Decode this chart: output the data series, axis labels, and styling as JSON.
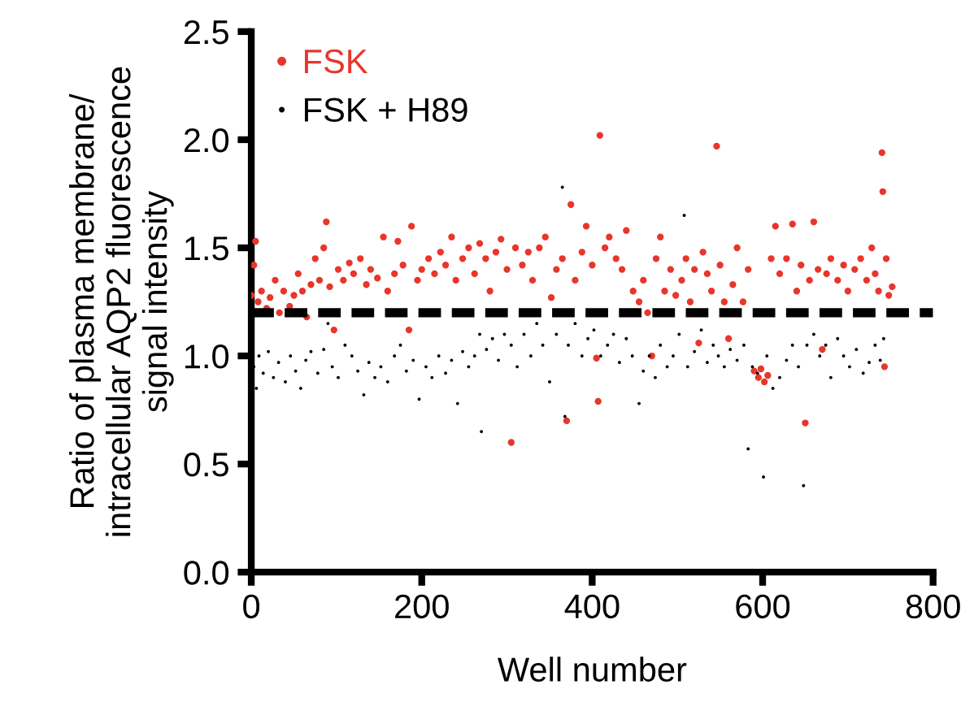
{
  "chart_data": {
    "type": "scatter",
    "xlabel": "Well number",
    "ylabel": "Ratio of plasma membrane/\nintracellular AQP2 fluorescence\nsignal intensity",
    "xlim": [
      0,
      800
    ],
    "xticks": [
      0,
      200,
      400,
      600,
      800
    ],
    "ylim": [
      0,
      2.5
    ],
    "yticks": [
      {
        "value": 0,
        "label": "0.0"
      },
      0.5,
      {
        "value": 1,
        "label": "1.0"
      },
      1.5,
      {
        "value": 2,
        "label": "2.0"
      },
      2.5
    ],
    "legend": "top left",
    "grid": false,
    "marker": "circle",
    "ref_lines": [
      {
        "axis": "y",
        "value": 1.2,
        "label": null,
        "color": "#000000",
        "line_style": "dashed"
      }
    ],
    "series": [
      {
        "name": "FSK",
        "color": "#e8362a",
        "x": [
          0,
          3,
          5,
          8,
          12,
          18,
          22,
          28,
          33,
          38,
          45,
          50,
          55,
          60,
          65,
          70,
          75,
          80,
          85,
          88,
          92,
          97,
          102,
          108,
          115,
          120,
          128,
          135,
          140,
          148,
          155,
          160,
          168,
          172,
          178,
          185,
          188,
          195,
          200,
          208,
          215,
          222,
          228,
          235,
          240,
          248,
          255,
          262,
          268,
          275,
          280,
          287,
          293,
          300,
          305,
          310,
          318,
          325,
          330,
          338,
          345,
          352,
          358,
          365,
          370,
          375,
          380,
          388,
          393,
          400,
          405,
          407,
          409,
          415,
          420,
          428,
          435,
          440,
          448,
          455,
          460,
          465,
          470,
          475,
          480,
          485,
          492,
          498,
          505,
          510,
          515,
          520,
          525,
          530,
          535,
          540,
          546,
          550,
          555,
          560,
          565,
          570,
          577,
          583,
          590,
          595,
          598,
          602,
          606,
          610,
          615,
          620,
          628,
          635,
          640,
          645,
          650,
          655,
          660,
          665,
          670,
          675,
          680,
          688,
          695,
          700,
          708,
          715,
          722,
          728,
          732,
          736,
          740,
          741,
          743,
          745,
          748,
          752
        ],
        "values": [
          1.28,
          1.42,
          1.53,
          1.25,
          1.3,
          1.22,
          1.27,
          1.35,
          1.2,
          1.3,
          1.23,
          1.28,
          1.38,
          1.3,
          1.18,
          1.33,
          1.45,
          1.35,
          1.5,
          1.62,
          1.32,
          1.12,
          1.4,
          1.35,
          1.43,
          1.38,
          1.45,
          1.33,
          1.4,
          1.36,
          1.55,
          1.3,
          1.38,
          1.53,
          1.42,
          1.12,
          1.6,
          1.35,
          1.4,
          1.45,
          1.38,
          1.48,
          1.42,
          1.55,
          1.35,
          1.45,
          1.5,
          1.38,
          1.52,
          1.45,
          1.3,
          1.48,
          1.54,
          1.4,
          0.6,
          1.5,
          1.42,
          1.48,
          1.35,
          1.5,
          1.55,
          1.27,
          1.4,
          1.45,
          0.7,
          1.7,
          1.35,
          1.48,
          1.6,
          1.42,
          0.99,
          0.79,
          2.02,
          1.5,
          1.55,
          1.45,
          1.4,
          1.58,
          1.3,
          1.25,
          1.35,
          1.2,
          1.0,
          1.45,
          1.55,
          1.3,
          1.4,
          1.28,
          1.35,
          1.45,
          1.25,
          1.4,
          1.06,
          1.48,
          1.38,
          1.3,
          1.97,
          1.42,
          1.25,
          1.08,
          1.33,
          1.5,
          1.25,
          1.4,
          0.93,
          0.9,
          0.94,
          0.88,
          0.91,
          1.45,
          1.6,
          1.38,
          1.45,
          1.61,
          1.3,
          1.42,
          0.69,
          1.35,
          1.62,
          1.4,
          1.03,
          1.38,
          1.45,
          1.35,
          1.42,
          1.3,
          1.4,
          1.45,
          1.35,
          1.5,
          1.38,
          1.3,
          1.94,
          1.76,
          0.95,
          1.45,
          1.28,
          1.32
        ]
      },
      {
        "name": "FSK + H89",
        "color": "#000000",
        "x": [
          3,
          6,
          9,
          14,
          20,
          26,
          32,
          40,
          46,
          52,
          58,
          64,
          70,
          78,
          85,
          90,
          95,
          102,
          110,
          118,
          125,
          132,
          138,
          145,
          152,
          160,
          168,
          175,
          182,
          190,
          197,
          205,
          212,
          220,
          228,
          235,
          242,
          248,
          255,
          262,
          268,
          270,
          276,
          283,
          290,
          297,
          305,
          312,
          320,
          328,
          335,
          342,
          350,
          358,
          365,
          368,
          372,
          380,
          388,
          395,
          402,
          410,
          418,
          425,
          432,
          440,
          447,
          455,
          460,
          467,
          474,
          480,
          488,
          495,
          502,
          508,
          512,
          520,
          528,
          535,
          542,
          548,
          555,
          562,
          570,
          578,
          583,
          588,
          594,
          601,
          605,
          612,
          620,
          628,
          635,
          642,
          648,
          652,
          660,
          667,
          674,
          680,
          688,
          695,
          702,
          710,
          718,
          725,
          732,
          738,
          742
        ],
        "values": [
          0.95,
          0.85,
          1.0,
          0.92,
          1.02,
          0.9,
          0.97,
          0.88,
          1.0,
          0.93,
          0.85,
          0.98,
          1.02,
          0.92,
          1.03,
          1.15,
          0.95,
          0.9,
          1.05,
          1.0,
          0.93,
          0.82,
          0.97,
          0.9,
          0.95,
          0.88,
          1.0,
          1.05,
          0.93,
          0.98,
          0.8,
          0.95,
          0.9,
          1.0,
          0.92,
          0.98,
          0.78,
          1.02,
          0.95,
          1.0,
          1.1,
          0.65,
          1.03,
          1.08,
          0.98,
          1.1,
          1.05,
          0.95,
          1.1,
          1.0,
          1.15,
          1.05,
          0.88,
          1.1,
          1.78,
          0.72,
          1.05,
          1.15,
          1.0,
          1.08,
          1.12,
          1.0,
          1.05,
          1.1,
          0.97,
          1.08,
          1.0,
          0.78,
          0.93,
          1.0,
          0.9,
          1.05,
          0.95,
          1.0,
          1.1,
          1.65,
          0.95,
          1.02,
          1.12,
          0.97,
          1.05,
          1.0,
          0.95,
          1.03,
          0.98,
          1.05,
          0.57,
          0.95,
          0.92,
          0.44,
          1.0,
          0.85,
          0.9,
          0.98,
          1.05,
          0.95,
          0.4,
          1.05,
          1.1,
          1.0,
          1.05,
          0.9,
          1.08,
          1.0,
          0.95,
          1.03,
          0.92,
          0.97,
          1.05,
          0.98,
          1.08
        ]
      }
    ]
  }
}
